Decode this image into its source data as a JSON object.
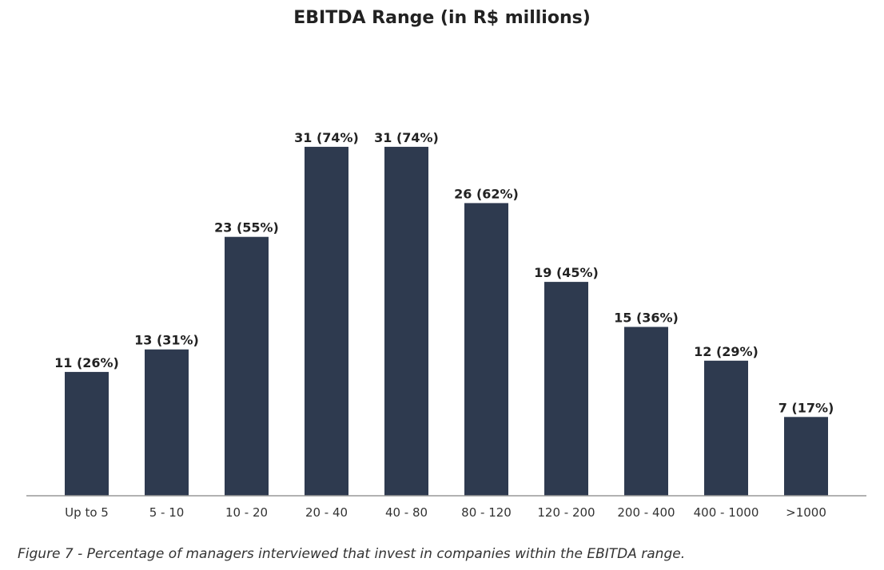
{
  "chart_data": {
    "type": "bar",
    "title": "EBITDA Range (in R$ millions)",
    "xlabel": "",
    "ylabel": "",
    "categories": [
      "Up to 5",
      "5 - 10",
      "10 - 20",
      "20 - 40",
      "40 - 80",
      "80 - 120",
      "120 - 200",
      "200 - 400",
      "400 - 1000",
      ">1000"
    ],
    "values": [
      11,
      13,
      23,
      31,
      31,
      26,
      19,
      15,
      12,
      7
    ],
    "data_labels": [
      "11 (26%)",
      "13 (31%)",
      "23 (55%)",
      "31 (74%)",
      "31 (74%)",
      "26 (62%)",
      "19 (45%)",
      "15 (36%)",
      "12 (29%)",
      "7 (17%)"
    ],
    "ylim": [
      0,
      44
    ],
    "grid": false,
    "legend": "none",
    "bar_color": "#2e3a4f",
    "axis_color": "#999999"
  },
  "caption": "Figure 7 - Percentage of managers interviewed that invest in companies within the EBITDA range."
}
